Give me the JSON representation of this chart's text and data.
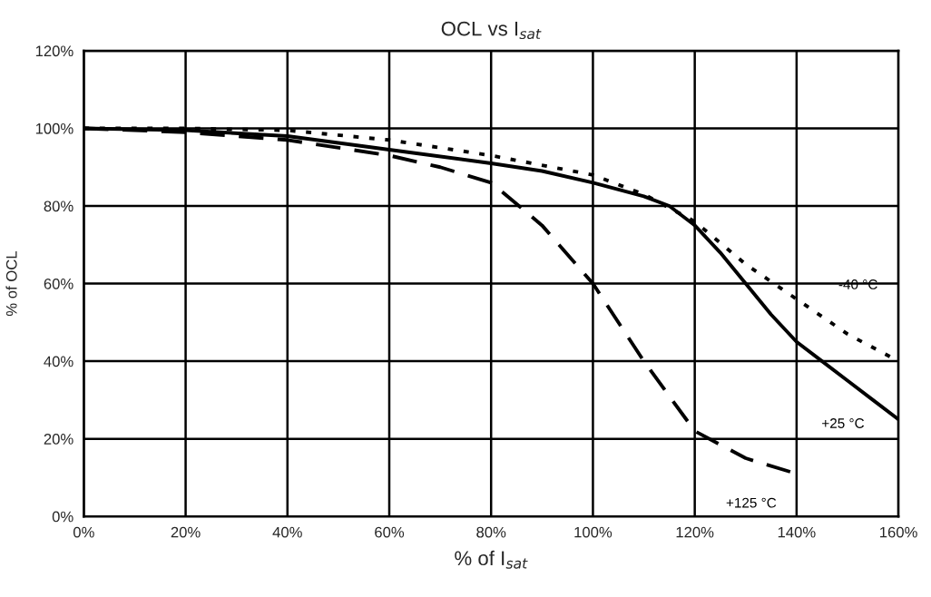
{
  "chart_data": {
    "type": "line",
    "title": "OCL vs I$_{sat}$",
    "xlabel": "% of I$_{sat}$",
    "ylabel": "% of OCL",
    "xlim": [
      0,
      160
    ],
    "ylim": [
      0,
      120
    ],
    "xticks": [
      {
        "value": 0,
        "label": "0%"
      },
      {
        "value": 20,
        "label": "20%"
      },
      {
        "value": 40,
        "label": "40%"
      },
      {
        "value": 60,
        "label": "60%"
      },
      {
        "value": 80,
        "label": "80%"
      },
      {
        "value": 100,
        "label": "100%"
      },
      {
        "value": 120,
        "label": "120%"
      },
      {
        "value": 140,
        "label": "140%"
      },
      {
        "value": 160,
        "label": "160%"
      }
    ],
    "yticks": [
      {
        "value": 0,
        "label": "0%"
      },
      {
        "value": 20,
        "label": "20%"
      },
      {
        "value": 40,
        "label": "40%"
      },
      {
        "value": 60,
        "label": "60%"
      },
      {
        "value": 80,
        "label": "80%"
      },
      {
        "value": 100,
        "label": "100%"
      },
      {
        "value": 120,
        "label": "120%"
      }
    ],
    "grid": true,
    "marker": "none",
    "series": [
      {
        "name": "-40 °C",
        "color": "#000000",
        "line_style": "dotted",
        "x": [
          0,
          20,
          40,
          60,
          80,
          100,
          110,
          120,
          130,
          140,
          150,
          160
        ],
        "values": [
          100,
          100,
          99.5,
          97,
          93,
          88,
          83,
          76,
          65,
          56,
          47,
          40
        ]
      },
      {
        "name": "+25 °C",
        "color": "#000000",
        "line_style": "solid",
        "x": [
          0,
          20,
          40,
          60,
          80,
          90,
          100,
          110,
          115,
          120,
          125,
          130,
          135,
          140,
          145,
          150,
          155,
          160
        ],
        "values": [
          100,
          99.5,
          98,
          94.5,
          91,
          89,
          86,
          82.5,
          80,
          75,
          68,
          60,
          52,
          45,
          40,
          35,
          30,
          25
        ]
      },
      {
        "name": "+125 °C",
        "color": "#000000",
        "line_style": "dashed",
        "x": [
          0,
          20,
          40,
          60,
          70,
          80,
          90,
          100,
          110,
          120,
          130,
          140
        ],
        "values": [
          100,
          99,
          97,
          93,
          90,
          86,
          75,
          60,
          40,
          22,
          15,
          11
        ]
      }
    ]
  }
}
